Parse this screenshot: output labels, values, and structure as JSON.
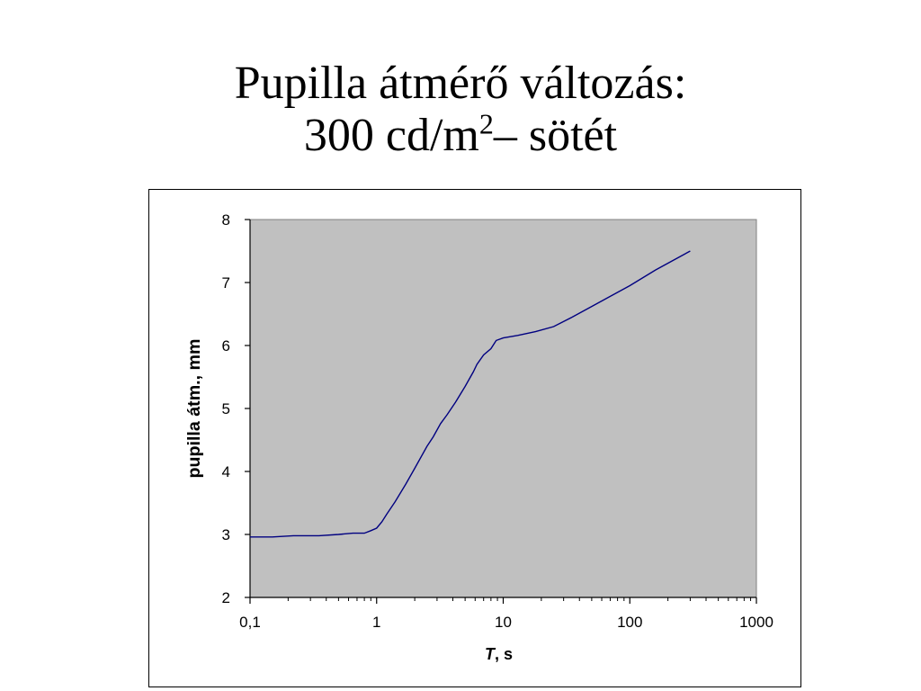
{
  "slide": {
    "title_line1": "Pupilla átmérő változás:",
    "title_line2_prefix": "300 cd/m",
    "title_line2_sup": "2",
    "title_line2_suffix": "– sötét"
  },
  "chart_data": {
    "type": "line",
    "xscale": "log",
    "xlim": [
      0.1,
      1000
    ],
    "ylim": [
      2,
      8
    ],
    "xticks": [
      {
        "value": 0.1,
        "label": "0,1"
      },
      {
        "value": 1,
        "label": "1"
      },
      {
        "value": 10,
        "label": "10"
      },
      {
        "value": 100,
        "label": "100"
      },
      {
        "value": 1000,
        "label": "1000"
      }
    ],
    "yticks": [
      {
        "value": 2,
        "label": "2"
      },
      {
        "value": 3,
        "label": "3"
      },
      {
        "value": 4,
        "label": "4"
      },
      {
        "value": 5,
        "label": "5"
      },
      {
        "value": 6,
        "label": "6"
      },
      {
        "value": 7,
        "label": "7"
      },
      {
        "value": 8,
        "label": "8"
      }
    ],
    "xlabel_italic": "T",
    "xlabel_rest": ", s",
    "ylabel": "pupilla átm., mm",
    "plot_background": "#c0c0c0",
    "line_color": "#000080",
    "grid": false,
    "series": [
      {
        "x": [
          0.1,
          0.15,
          0.22,
          0.35,
          0.5,
          0.65,
          0.8,
          0.9,
          1.0,
          1.1,
          1.2,
          1.4,
          1.7,
          2.0,
          2.5,
          2.8,
          3.2,
          3.6,
          4.2,
          5.0,
          5.8,
          6.2,
          7.0,
          8.0,
          8.8,
          10,
          13,
          18,
          25,
          35,
          50,
          70,
          100,
          160,
          300
        ],
        "y": [
          2.96,
          2.96,
          2.98,
          2.98,
          3.0,
          3.02,
          3.02,
          3.06,
          3.1,
          3.2,
          3.32,
          3.52,
          3.8,
          4.05,
          4.4,
          4.55,
          4.76,
          4.9,
          5.1,
          5.35,
          5.58,
          5.7,
          5.85,
          5.95,
          6.08,
          6.12,
          6.16,
          6.22,
          6.3,
          6.45,
          6.62,
          6.78,
          6.95,
          7.2,
          7.5
        ]
      }
    ]
  }
}
